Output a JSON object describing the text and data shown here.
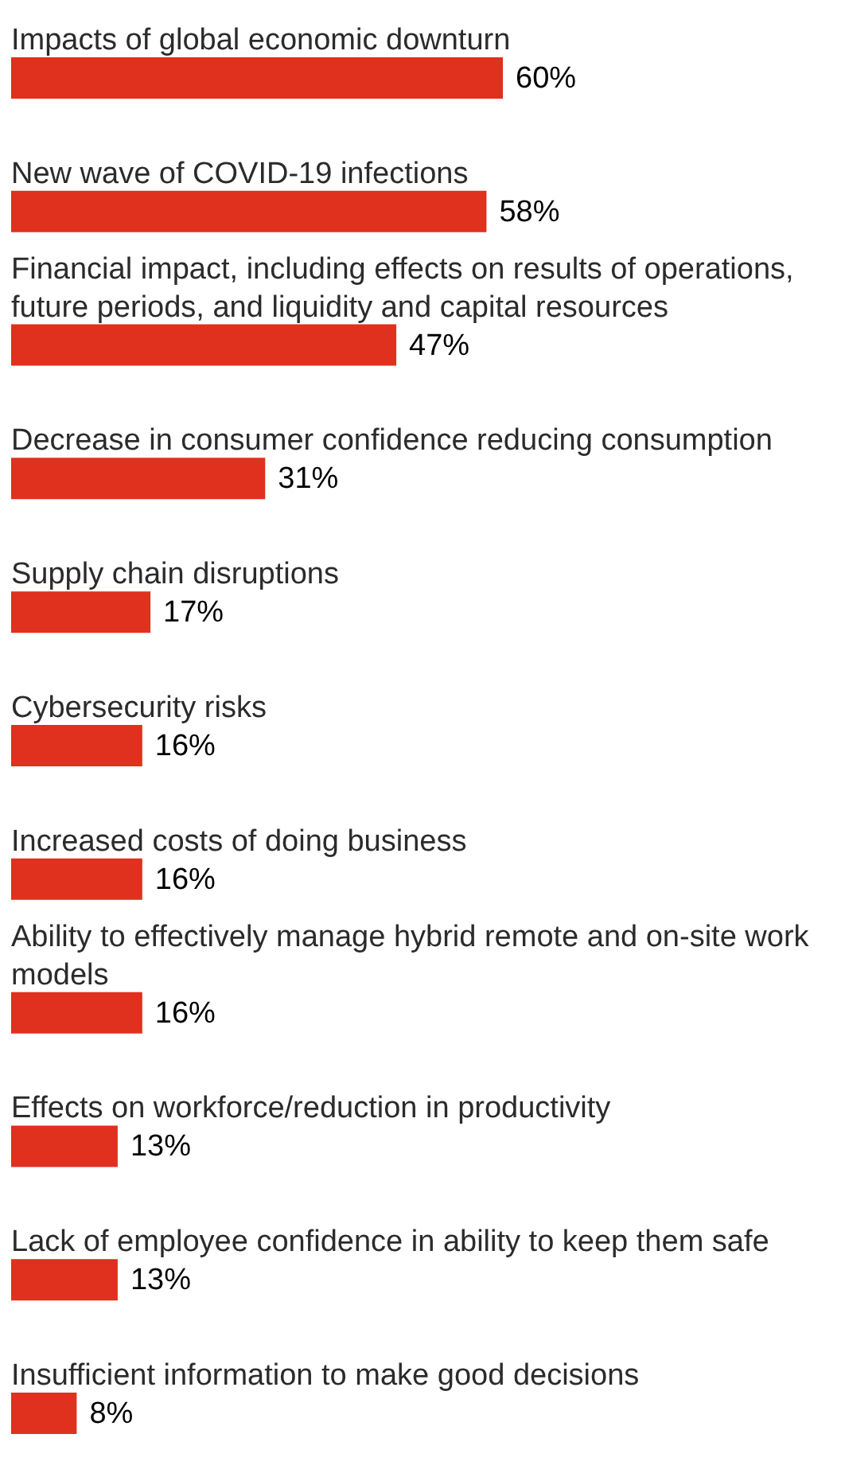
{
  "chart_data": {
    "type": "bar",
    "orientation": "horizontal",
    "categories": [
      "Impacts of global economic downturn",
      "New wave of COVID-19 infections",
      "Financial impact, including effects on results of operations, future periods, and liquidity and capital resources",
      "Decrease in consumer confidence reducing consumption",
      "Supply chain disruptions",
      "Cybersecurity risks",
      "Increased costs of doing business",
      "Ability to effectively manage hybrid remote and on-site work models",
      "Effects on workforce/reduction in productivity",
      "Lack of employee confidence in ability to keep them safe",
      "Insufficient information to make good decisions"
    ],
    "values": [
      60,
      58,
      47,
      31,
      17,
      16,
      16,
      16,
      13,
      13,
      8
    ],
    "value_labels": [
      "60%",
      "58%",
      "47%",
      "31%",
      "17%",
      "16%",
      "16%",
      "16%",
      "13%",
      "13%",
      "8%"
    ],
    "color": "#e0301e"
  }
}
